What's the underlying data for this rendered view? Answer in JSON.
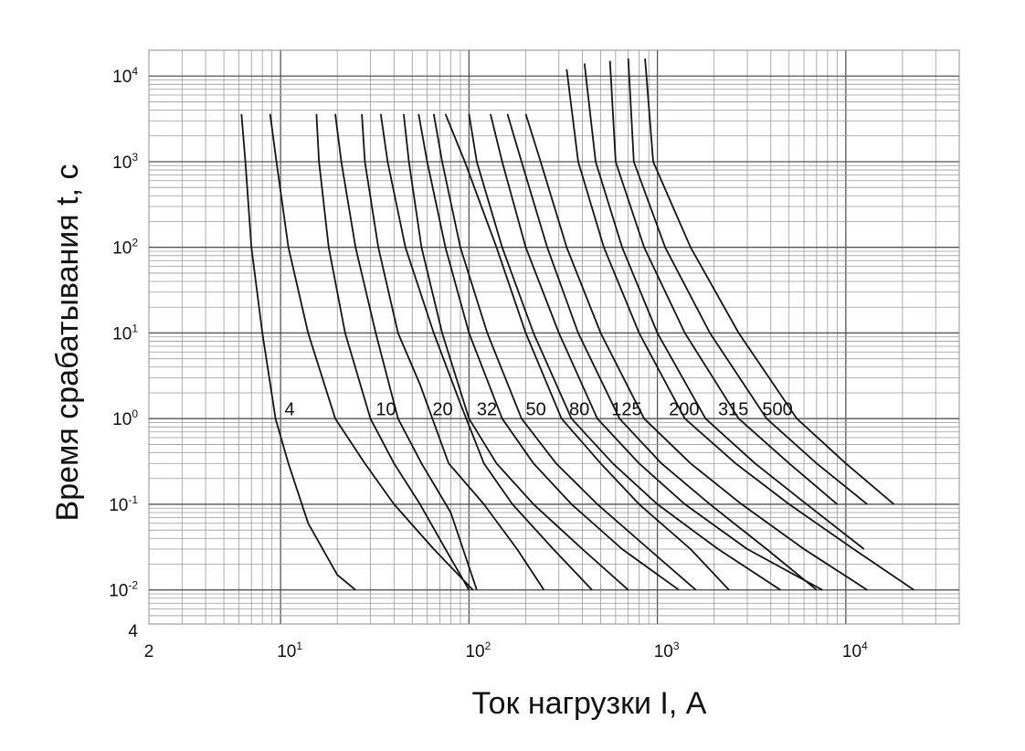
{
  "chart_data": {
    "type": "line",
    "title": "",
    "xlabel": "Ток нагрузки  I, А",
    "ylabel": "Время срабатывания  t, с",
    "x_scale": "log",
    "y_scale": "log",
    "xlim": [
      2,
      40000
    ],
    "ylim": [
      0.004,
      20000
    ],
    "grid": true,
    "x_ticks": [
      {
        "value": 2,
        "base": "2",
        "exp": ""
      },
      {
        "value": 10,
        "base": "10",
        "exp": "1"
      },
      {
        "value": 100,
        "base": "10",
        "exp": "2"
      },
      {
        "value": 1000,
        "base": "10",
        "exp": "3"
      },
      {
        "value": 10000,
        "base": "10",
        "exp": "4"
      }
    ],
    "y_ticks": [
      {
        "value": 0.004,
        "base": "4",
        "exp": ""
      },
      {
        "value": 0.01,
        "base": "10",
        "exp": "-2"
      },
      {
        "value": 0.1,
        "base": "10",
        "exp": "-1"
      },
      {
        "value": 1,
        "base": "10",
        "exp": "0"
      },
      {
        "value": 10,
        "base": "10",
        "exp": "1"
      },
      {
        "value": 100,
        "base": "10",
        "exp": "2"
      },
      {
        "value": 1000,
        "base": "10",
        "exp": "3"
      },
      {
        "value": 10000,
        "base": "10",
        "exp": "4"
      }
    ],
    "series": [
      {
        "name": "4",
        "label_pos": [
          10.5,
          1.1
        ],
        "points": [
          [
            6.2,
            3600
          ],
          [
            6.5,
            1000
          ],
          [
            7.0,
            100
          ],
          [
            8.0,
            10
          ],
          [
            9.4,
            1
          ],
          [
            11,
            0.3
          ],
          [
            14,
            0.06
          ],
          [
            20,
            0.015
          ],
          [
            25,
            0.01
          ]
        ]
      },
      {
        "name": "",
        "label_pos": null,
        "points": [
          [
            8.8,
            3600
          ],
          [
            9.5,
            1000
          ],
          [
            11,
            100
          ],
          [
            14,
            10
          ],
          [
            19.5,
            1
          ],
          [
            28,
            0.3
          ],
          [
            40,
            0.1
          ],
          [
            65,
            0.03
          ],
          [
            105,
            0.01
          ]
        ]
      },
      {
        "name": "",
        "label_pos": null,
        "points": [
          [
            15.5,
            3600
          ],
          [
            16,
            1000
          ],
          [
            18,
            100
          ],
          [
            22,
            10
          ],
          [
            30,
            1
          ],
          [
            40,
            0.3
          ],
          [
            55,
            0.1
          ],
          [
            75,
            0.03
          ],
          [
            100,
            0.01
          ]
        ]
      },
      {
        "name": "10",
        "label_pos": [
          32,
          1.1
        ],
        "points": [
          [
            19.5,
            3600
          ],
          [
            21,
            1000
          ],
          [
            25,
            100
          ],
          [
            32,
            10
          ],
          [
            42,
            1
          ],
          [
            56,
            0.3
          ],
          [
            80,
            0.08
          ],
          [
            110,
            0.01
          ]
        ]
      },
      {
        "name": "",
        "label_pos": null,
        "points": [
          [
            27,
            3600
          ],
          [
            28,
            1000
          ],
          [
            33,
            100
          ],
          [
            42,
            10
          ],
          [
            55,
            2.5
          ],
          [
            78,
            0.3
          ],
          [
            120,
            0.1
          ],
          [
            180,
            0.03
          ],
          [
            250,
            0.01
          ]
        ]
      },
      {
        "name": "20",
        "label_pos": [
          64,
          1.1
        ],
        "points": [
          [
            34,
            3600
          ],
          [
            37,
            1000
          ],
          [
            46,
            100
          ],
          [
            65,
            10
          ],
          [
            90,
            1.5
          ],
          [
            120,
            0.3
          ],
          [
            170,
            0.1
          ],
          [
            280,
            0.03
          ],
          [
            450,
            0.01
          ]
        ]
      },
      {
        "name": "",
        "label_pos": null,
        "points": [
          [
            45,
            3600
          ],
          [
            48,
            1000
          ],
          [
            56,
            100
          ],
          [
            72,
            10
          ],
          [
            100,
            1
          ],
          [
            140,
            0.3
          ],
          [
            220,
            0.1
          ],
          [
            400,
            0.03
          ],
          [
            700,
            0.01
          ]
        ]
      },
      {
        "name": "32",
        "label_pos": [
          110,
          1.1
        ],
        "points": [
          [
            54,
            3600
          ],
          [
            60,
            1000
          ],
          [
            75,
            100
          ],
          [
            100,
            10
          ],
          [
            150,
            1
          ],
          [
            220,
            0.3
          ],
          [
            350,
            0.1
          ],
          [
            650,
            0.03
          ],
          [
            1300,
            0.01
          ]
        ]
      },
      {
        "name": "",
        "label_pos": null,
        "points": [
          [
            65,
            3600
          ],
          [
            72,
            1000
          ],
          [
            90,
            100
          ],
          [
            125,
            10
          ],
          [
            190,
            1
          ],
          [
            290,
            0.3
          ],
          [
            480,
            0.1
          ],
          [
            900,
            0.03
          ],
          [
            1600,
            0.01
          ]
        ]
      },
      {
        "name": "50",
        "label_pos": [
          200,
          1.1
        ],
        "points": [
          [
            75,
            3600
          ],
          [
            95,
            1000
          ],
          [
            140,
            100
          ],
          [
            200,
            10
          ],
          [
            310,
            1
          ],
          [
            500,
            0.3
          ],
          [
            800,
            0.1
          ],
          [
            1500,
            0.03
          ],
          [
            2400,
            0.01
          ]
        ]
      },
      {
        "name": "",
        "label_pos": null,
        "points": [
          [
            100,
            3600
          ],
          [
            110,
            1000
          ],
          [
            150,
            100
          ],
          [
            220,
            10
          ],
          [
            350,
            1
          ],
          [
            580,
            0.3
          ],
          [
            1000,
            0.1
          ],
          [
            2100,
            0.03
          ],
          [
            4500,
            0.01
          ]
        ]
      },
      {
        "name": "80",
        "label_pos": [
          340,
          1.1
        ],
        "points": [
          [
            130,
            3600
          ],
          [
            150,
            1000
          ],
          [
            200,
            100
          ],
          [
            300,
            10
          ],
          [
            480,
            1
          ],
          [
            800,
            0.3
          ],
          [
            1400,
            0.1
          ],
          [
            3000,
            0.03
          ],
          [
            7500,
            0.01
          ]
        ]
      },
      {
        "name": "",
        "label_pos": null,
        "points": [
          [
            160,
            3600
          ],
          [
            190,
            1000
          ],
          [
            260,
            100
          ],
          [
            380,
            10
          ],
          [
            630,
            1
          ],
          [
            1050,
            0.3
          ],
          [
            1900,
            0.1
          ],
          [
            3800,
            0.03
          ],
          [
            7000,
            0.01
          ]
        ]
      },
      {
        "name": "125",
        "label_pos": [
          570,
          1.1
        ],
        "points": [
          [
            200,
            3600
          ],
          [
            240,
            1000
          ],
          [
            330,
            100
          ],
          [
            500,
            10
          ],
          [
            850,
            1
          ],
          [
            1500,
            0.3
          ],
          [
            2800,
            0.1
          ],
          [
            6000,
            0.03
          ],
          [
            13000,
            0.01
          ]
        ]
      },
      {
        "name": "200",
        "label_pos": [
          1150,
          1.1
        ],
        "points": [
          [
            330,
            12000
          ],
          [
            380,
            1000
          ],
          [
            520,
            100
          ],
          [
            800,
            10
          ],
          [
            1400,
            1
          ],
          [
            2600,
            0.3
          ],
          [
            5000,
            0.1
          ],
          [
            11000,
            0.03
          ],
          [
            23000,
            0.01
          ]
        ]
      },
      {
        "name": "315",
        "label_pos": [
          2100,
          1.1
        ],
        "points": [
          [
            410,
            14000
          ],
          [
            470,
            1000
          ],
          [
            650,
            100
          ],
          [
            1000,
            10
          ],
          [
            1800,
            1
          ],
          [
            3300,
            0.3
          ],
          [
            6200,
            0.1
          ],
          [
            12500,
            0.03
          ]
        ]
      },
      {
        "name": "500",
        "label_pos": [
          3600,
          1.1
        ],
        "points": [
          [
            560,
            15000
          ],
          [
            600,
            1000
          ],
          [
            850,
            100
          ],
          [
            1400,
            10
          ],
          [
            2700,
            1
          ],
          [
            5000,
            0.3
          ],
          [
            9000,
            0.1
          ]
        ]
      },
      {
        "name": "",
        "label_pos": null,
        "points": [
          [
            700,
            16000
          ],
          [
            750,
            1000
          ],
          [
            1100,
            100
          ],
          [
            1900,
            10
          ],
          [
            3800,
            1
          ],
          [
            7000,
            0.3
          ],
          [
            13000,
            0.1
          ]
        ]
      },
      {
        "name": "",
        "label_pos": null,
        "points": [
          [
            860,
            16000
          ],
          [
            950,
            1000
          ],
          [
            1500,
            100
          ],
          [
            2700,
            10
          ],
          [
            5500,
            1
          ],
          [
            10000,
            0.3
          ],
          [
            18000,
            0.1
          ]
        ]
      }
    ]
  }
}
